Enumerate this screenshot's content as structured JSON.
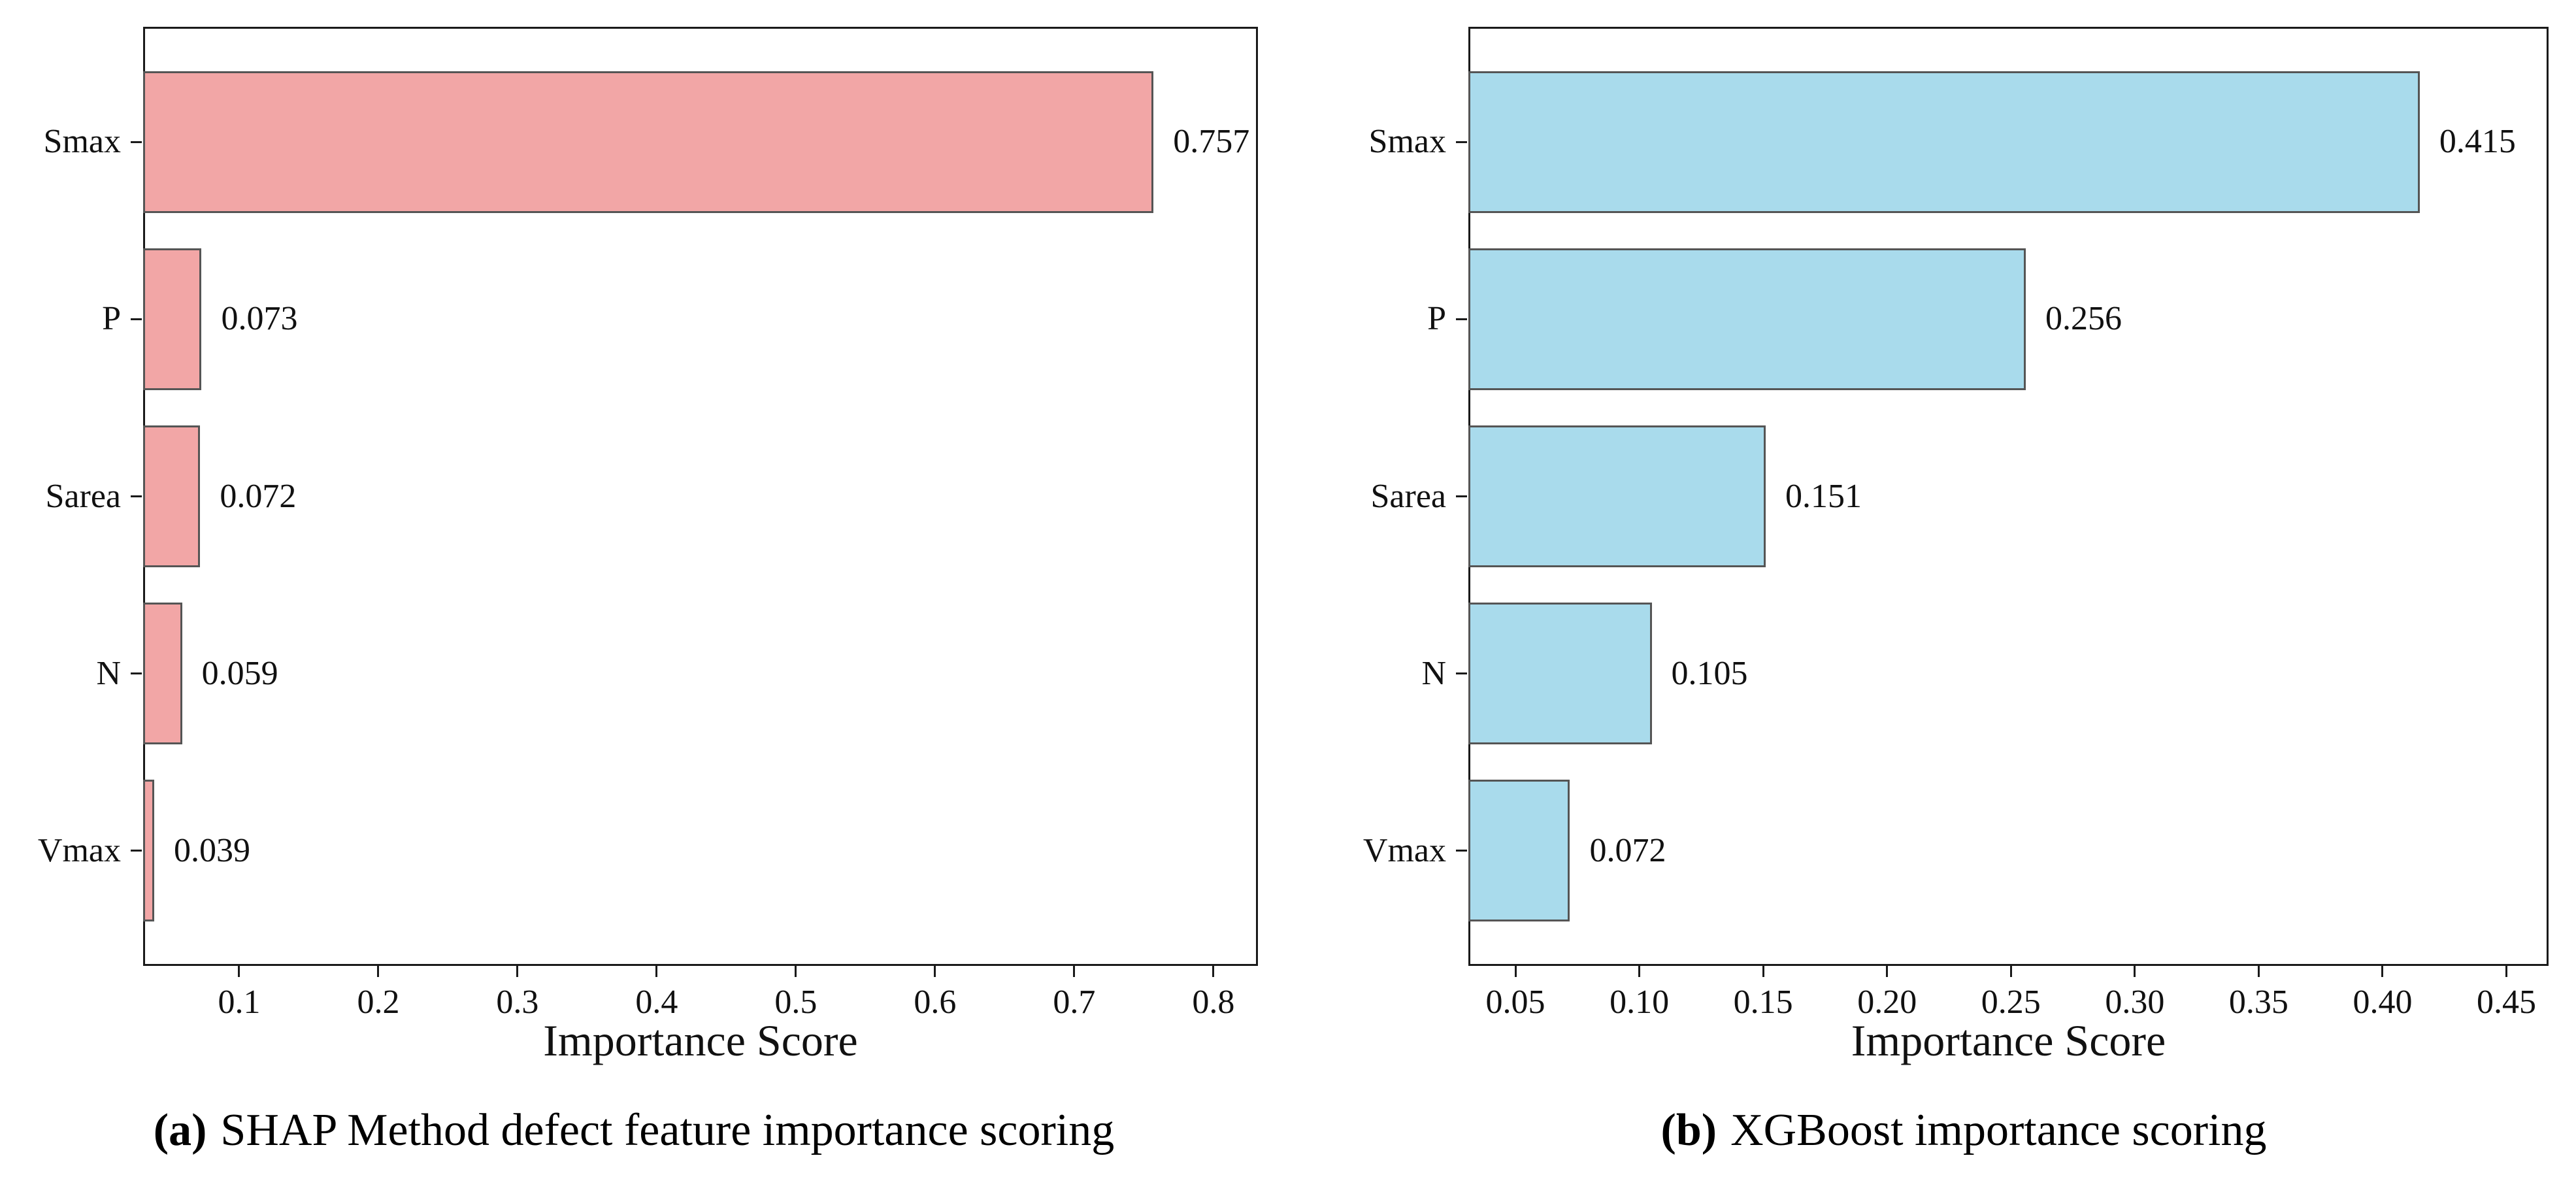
{
  "figure": {
    "background": "#ffffff",
    "frame_color": "#1a1a1a",
    "text_color": "#111111"
  },
  "chart_data": [
    {
      "type": "bar",
      "orientation": "horizontal",
      "title": "",
      "categories": [
        "Smax",
        "P",
        "Sarea",
        "N",
        "Vmax"
      ],
      "values": [
        0.757,
        0.073,
        0.072,
        0.059,
        0.039
      ],
      "value_labels": [
        "0.757",
        "0.073",
        "0.072",
        "0.059",
        "0.039"
      ],
      "xlabel": "Importance Score",
      "ylabel": "",
      "xlim": [
        0.031,
        0.832
      ],
      "xticks": [
        0.1,
        0.2,
        0.3,
        0.4,
        0.5,
        0.6,
        0.7,
        0.8
      ],
      "xtick_labels": [
        "0.1",
        "0.2",
        "0.3",
        "0.4",
        "0.5",
        "0.6",
        "0.7",
        "0.8"
      ],
      "grid": false,
      "legend": "none",
      "bar_color": "#f2a6a6",
      "bar_edge_color": "#555555",
      "caption": {
        "open": "(",
        "letter": "a",
        "close": ")",
        "text": "SHAP Method defect feature importance scoring"
      }
    },
    {
      "type": "bar",
      "orientation": "horizontal",
      "title": "",
      "categories": [
        "Smax",
        "P",
        "Sarea",
        "N",
        "Vmax"
      ],
      "values": [
        0.415,
        0.256,
        0.151,
        0.105,
        0.072
      ],
      "value_labels": [
        "0.415",
        "0.256",
        "0.151",
        "0.105",
        "0.072"
      ],
      "xlabel": "Importance Score",
      "ylabel": "",
      "xlim": [
        0.031,
        0.467
      ],
      "xticks": [
        0.05,
        0.1,
        0.15,
        0.2,
        0.25,
        0.3,
        0.35,
        0.4,
        0.45
      ],
      "xtick_labels": [
        "0.05",
        "0.10",
        "0.15",
        "0.20",
        "0.25",
        "0.30",
        "0.35",
        "0.40",
        "0.45"
      ],
      "grid": false,
      "legend": "none",
      "bar_color": "#a9dbec",
      "bar_edge_color": "#555555",
      "caption": {
        "open": "(",
        "letter": "b",
        "close": ")",
        "text": "XGBoost importance scoring"
      }
    }
  ]
}
